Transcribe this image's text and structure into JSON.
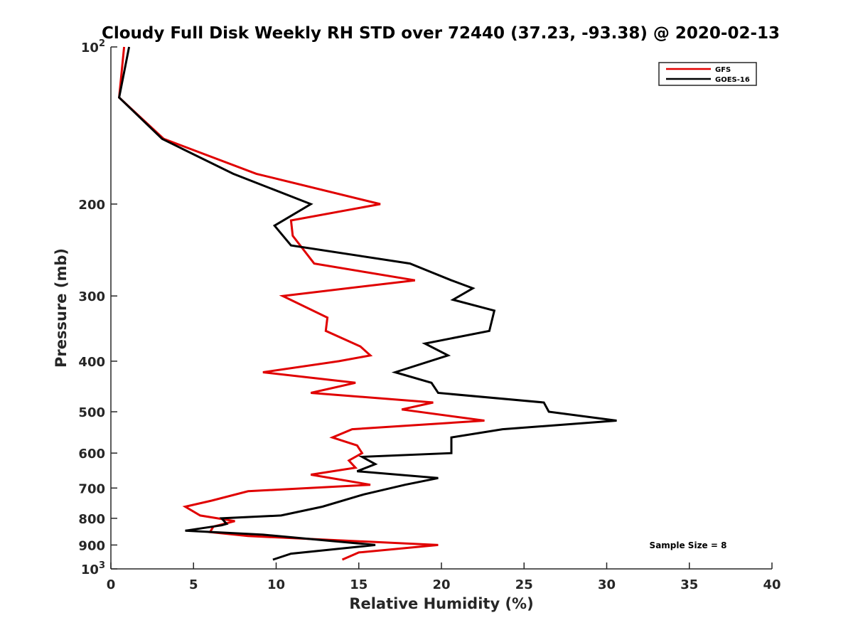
{
  "chart_data": {
    "type": "line",
    "title": "Cloudy Full Disk Weekly RH STD over 72440 (37.23, -93.38) @ 2020-02-13",
    "xlabel": "Relative Humidity (%)",
    "ylabel": "Pressure (mb)",
    "xlim": [
      0,
      40
    ],
    "ylim": [
      100,
      1000
    ],
    "y_scale": "log",
    "y_reversed": true,
    "grid": false,
    "legend_position": "top-right",
    "x_ticks": [
      0,
      5,
      10,
      15,
      20,
      25,
      30,
      35,
      40
    ],
    "x_tick_labels": [
      "0",
      "5",
      "10",
      "15",
      "20",
      "25",
      "30",
      "35",
      "40"
    ],
    "y_ticks": [
      100,
      200,
      300,
      400,
      500,
      600,
      700,
      800,
      900,
      1000
    ],
    "y_tick_labels": [
      {
        "base": "10",
        "exp": "2"
      },
      {
        "base": "200",
        "exp": ""
      },
      {
        "base": "300",
        "exp": ""
      },
      {
        "base": "400",
        "exp": ""
      },
      {
        "base": "500",
        "exp": ""
      },
      {
        "base": "600",
        "exp": ""
      },
      {
        "base": "700",
        "exp": ""
      },
      {
        "base": "800",
        "exp": ""
      },
      {
        "base": "900",
        "exp": ""
      },
      {
        "base": "10",
        "exp": "3"
      }
    ],
    "annotation": "Sample Size = 8",
    "series": [
      {
        "name": "GFS",
        "color": "#e00000",
        "points": [
          [
            0.8,
            100
          ],
          [
            0.5,
            125
          ],
          [
            3.2,
            150
          ],
          [
            8.8,
            175
          ],
          [
            16.3,
            200
          ],
          [
            10.9,
            215
          ],
          [
            11.0,
            230
          ],
          [
            12.3,
            260
          ],
          [
            18.4,
            280
          ],
          [
            10.4,
            300
          ],
          [
            13.1,
            330
          ],
          [
            13.0,
            350
          ],
          [
            15.1,
            375
          ],
          [
            15.7,
            390
          ],
          [
            13.8,
            400
          ],
          [
            9.2,
            420
          ],
          [
            14.8,
            440
          ],
          [
            12.1,
            460
          ],
          [
            19.5,
            480
          ],
          [
            17.6,
            495
          ],
          [
            22.6,
            520
          ],
          [
            14.6,
            540
          ],
          [
            13.4,
            560
          ],
          [
            14.9,
            580
          ],
          [
            15.2,
            600
          ],
          [
            14.4,
            620
          ],
          [
            14.8,
            640
          ],
          [
            12.1,
            660
          ],
          [
            15.7,
            690
          ],
          [
            8.3,
            710
          ],
          [
            6.1,
            740
          ],
          [
            4.5,
            760
          ],
          [
            5.4,
            790
          ],
          [
            7.5,
            810
          ],
          [
            6.2,
            830
          ],
          [
            6.0,
            850
          ],
          [
            8.3,
            865
          ],
          [
            19.8,
            900
          ],
          [
            15.0,
            930
          ],
          [
            14.0,
            960
          ]
        ]
      },
      {
        "name": "GOES-16",
        "color": "#000000",
        "points": [
          [
            1.1,
            100
          ],
          [
            0.5,
            125
          ],
          [
            3.1,
            150
          ],
          [
            7.4,
            175
          ],
          [
            12.1,
            200
          ],
          [
            9.9,
            220
          ],
          [
            10.9,
            240
          ],
          [
            18.1,
            260
          ],
          [
            20.6,
            280
          ],
          [
            21.9,
            290
          ],
          [
            20.7,
            305
          ],
          [
            23.2,
            320
          ],
          [
            22.9,
            350
          ],
          [
            19.0,
            370
          ],
          [
            20.4,
            390
          ],
          [
            17.2,
            420
          ],
          [
            19.4,
            440
          ],
          [
            19.8,
            460
          ],
          [
            26.2,
            480
          ],
          [
            26.5,
            500
          ],
          [
            30.6,
            520
          ],
          [
            23.7,
            540
          ],
          [
            20.6,
            560
          ],
          [
            20.6,
            600
          ],
          [
            15.2,
            610
          ],
          [
            16.0,
            630
          ],
          [
            14.9,
            650
          ],
          [
            19.8,
            670
          ],
          [
            17.8,
            690
          ],
          [
            15.3,
            720
          ],
          [
            12.8,
            760
          ],
          [
            10.3,
            790
          ],
          [
            6.7,
            800
          ],
          [
            7.0,
            820
          ],
          [
            6.7,
            825
          ],
          [
            4.5,
            845
          ],
          [
            9.2,
            860
          ],
          [
            16.0,
            900
          ],
          [
            10.9,
            935
          ],
          [
            9.8,
            960
          ]
        ]
      }
    ]
  }
}
